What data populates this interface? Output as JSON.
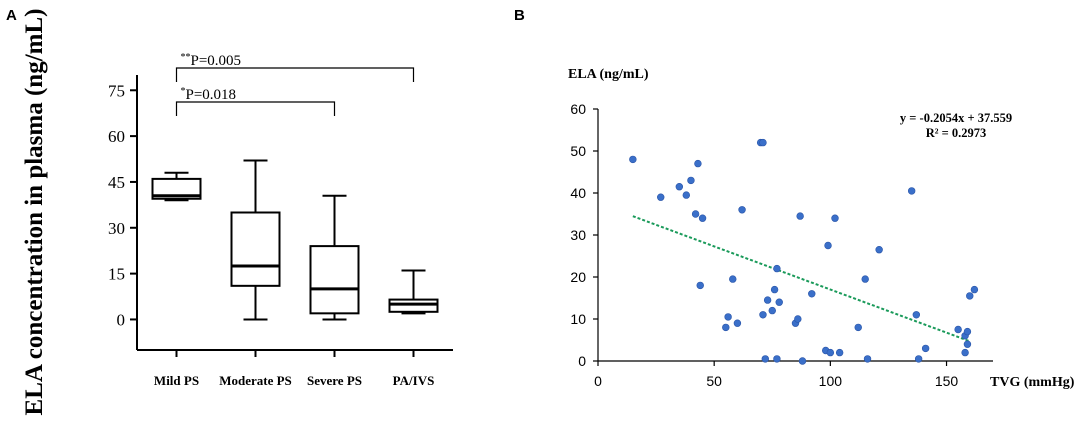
{
  "panels": {
    "a": "A",
    "b": "B"
  },
  "chart_data": [
    {
      "type": "box",
      "ylabel": "ELA concentration in plasma (ng/mL)",
      "ylim": [
        -10,
        80
      ],
      "yticks": [
        0,
        15,
        30,
        45,
        60,
        75
      ],
      "categories": [
        "Mild PS",
        "Moderate PS",
        "Severe PS",
        "PA/IVS"
      ],
      "boxes": [
        {
          "min": 39,
          "q1": 39.5,
          "median": 40.5,
          "q3": 46,
          "max": 48
        },
        {
          "min": 0,
          "q1": 11,
          "median": 17.5,
          "q3": 35,
          "max": 52
        },
        {
          "min": 0,
          "q1": 2,
          "median": 10,
          "q3": 24,
          "max": 40.5
        },
        {
          "min": 2,
          "q1": 2.5,
          "median": 5,
          "q3": 6.5,
          "max": 16
        }
      ],
      "comparisons": [
        {
          "from": 0,
          "to": 3,
          "stars": "**",
          "label": "P=0.005"
        },
        {
          "from": 0,
          "to": 2,
          "stars": "*",
          "label": "P=0.018"
        }
      ]
    },
    {
      "type": "scatter",
      "ylabel": "ELA (ng/mL)",
      "xlabel": "TVG (mmHg)",
      "xlim": [
        0,
        170
      ],
      "ylim": [
        0,
        60
      ],
      "xticks": [
        0,
        50,
        100,
        150
      ],
      "yticks": [
        0,
        10,
        20,
        30,
        40,
        50,
        60
      ],
      "equation": "y = -0.2054x + 37.559",
      "r2": "R² = 0.2973",
      "trend": {
        "slope": -0.2054,
        "intercept": 37.559,
        "x_start": 15,
        "x_end": 160
      },
      "point_color": "#3a6fc9",
      "trend_color": "#1a9a5a",
      "points": [
        [
          15,
          48
        ],
        [
          27,
          39
        ],
        [
          35,
          41.5
        ],
        [
          38,
          39.5
        ],
        [
          40,
          43
        ],
        [
          42,
          35
        ],
        [
          43,
          47
        ],
        [
          44,
          18
        ],
        [
          45,
          34
        ],
        [
          55,
          8
        ],
        [
          56,
          10.5
        ],
        [
          58,
          19.5
        ],
        [
          60,
          9
        ],
        [
          62,
          36
        ],
        [
          70,
          52
        ],
        [
          71,
          52
        ],
        [
          71,
          11
        ],
        [
          72,
          0.5
        ],
        [
          73,
          14.5
        ],
        [
          75,
          12
        ],
        [
          76,
          17
        ],
        [
          77,
          22
        ],
        [
          77,
          0.5
        ],
        [
          78,
          14
        ],
        [
          85,
          9
        ],
        [
          86,
          10
        ],
        [
          87,
          34.5
        ],
        [
          88,
          0
        ],
        [
          92,
          16
        ],
        [
          98,
          2.5
        ],
        [
          99,
          27.5
        ],
        [
          100,
          2
        ],
        [
          102,
          34
        ],
        [
          104,
          2
        ],
        [
          112,
          8
        ],
        [
          115,
          19.5
        ],
        [
          116,
          0.5
        ],
        [
          121,
          26.5
        ],
        [
          135,
          40.5
        ],
        [
          137,
          11
        ],
        [
          138,
          0.5
        ],
        [
          141,
          3
        ],
        [
          155,
          7.5
        ],
        [
          158,
          6
        ],
        [
          158,
          2
        ],
        [
          159,
          4
        ],
        [
          159,
          7
        ],
        [
          160,
          15.5
        ],
        [
          162,
          17
        ]
      ]
    }
  ]
}
